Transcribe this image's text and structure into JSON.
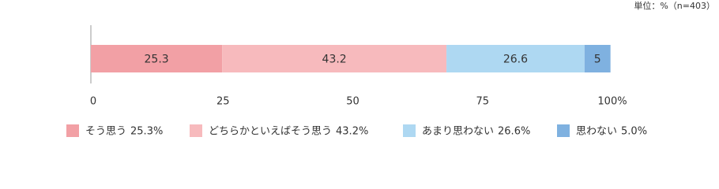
{
  "chart_data": {
    "type": "stacked-bar-horizontal",
    "subtitle": "単位：%（n=403）",
    "categories": [
      null
    ],
    "series": [
      {
        "name": "そう思う",
        "color": "#f2a0a5",
        "values": [
          25.3
        ],
        "value_labels": [
          "25.3%"
        ]
      },
      {
        "name": "どちらかといえばそう思う",
        "color": "#f7babd",
        "values": [
          43.2
        ],
        "value_labels": [
          "43.2%"
        ]
      },
      {
        "name": "あまり思わない",
        "color": "#aed8f2",
        "values": [
          26.6
        ],
        "value_labels": [
          "26.6%"
        ]
      },
      {
        "name": "思わない",
        "color": "#7fb1e0",
        "values": [
          5.0
        ],
        "value_labels": [
          "5.0%"
        ]
      }
    ],
    "xlim": [
      0,
      100
    ],
    "xticks": [
      0,
      25,
      50,
      75,
      {
        "value": 100,
        "label": "100%"
      }
    ]
  }
}
